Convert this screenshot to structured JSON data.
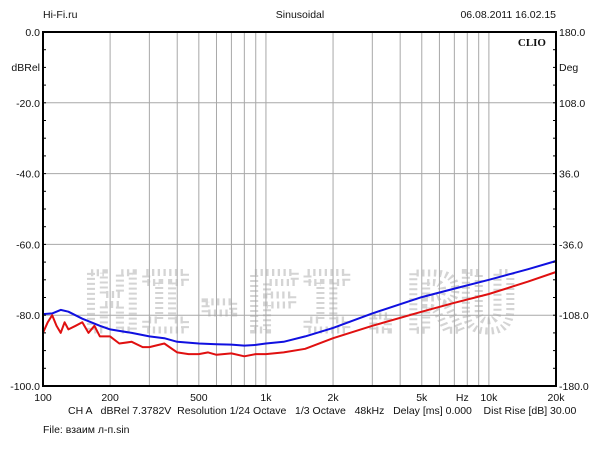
{
  "header": {
    "left": "Hi-Fi.ru",
    "center": "Sinusoidal",
    "right": "06.08.2011 16.02.15"
  },
  "brand": "CLIO",
  "watermark": "HI-FI.RU",
  "footer": {
    "info": "CH A   dBRel 7.3782V  Resolution 1/24 Octave   1/3 Octave   48kHz   Delay [ms] 0.000    Dist Rise [dB] 30.00",
    "file": "File: взаим л-п.sin"
  },
  "chart_data": {
    "type": "line",
    "title": "Sinusoidal",
    "xlabel": "Hz",
    "ylabel": "dBRel",
    "y2label": "Deg",
    "xscale": "log",
    "xlim": [
      100,
      20000
    ],
    "ylim": [
      -100,
      0
    ],
    "y2lim": [
      -180,
      180
    ],
    "xticks": [
      {
        "v": 100,
        "l": "100"
      },
      {
        "v": 200,
        "l": "200"
      },
      {
        "v": 500,
        "l": "500"
      },
      {
        "v": 1000,
        "l": "1k"
      },
      {
        "v": 2000,
        "l": "2k"
      },
      {
        "v": 5000,
        "l": "5k"
      },
      {
        "v": 7600,
        "l": "Hz"
      },
      {
        "v": 10000,
        "l": "10k"
      },
      {
        "v": 20000,
        "l": "20k"
      }
    ],
    "xgrid": [
      200,
      300,
      400,
      500,
      600,
      700,
      800,
      900,
      1000,
      2000,
      3000,
      4000,
      5000,
      6000,
      7000,
      8000,
      9000,
      10000
    ],
    "yticks": [
      {
        "v": 0,
        "l": "0.0",
        "r": "180.0"
      },
      {
        "v": -20,
        "l": "-20.0",
        "r": "108.0"
      },
      {
        "v": -40,
        "l": "-40.0",
        "r": "36.0"
      },
      {
        "v": -60,
        "l": "-60.0",
        "r": "-36.0"
      },
      {
        "v": -80,
        "l": "-80.0",
        "r": "-108.0"
      },
      {
        "v": -100,
        "l": "-100.0",
        "r": "-180.0"
      }
    ],
    "grid": true,
    "series": [
      {
        "name": "blue",
        "color": "#1010e0",
        "x": [
          100,
          110,
          120,
          130,
          150,
          180,
          200,
          250,
          300,
          350,
          400,
          500,
          600,
          700,
          800,
          900,
          1000,
          1200,
          1500,
          2000,
          3000,
          5000,
          7000,
          10000,
          15000,
          20000
        ],
        "y": [
          -79.7,
          -79.5,
          -78.5,
          -79,
          -81,
          -83,
          -84,
          -85,
          -86,
          -86.5,
          -87.5,
          -88,
          -88.2,
          -88.3,
          -88.6,
          -88.4,
          -88,
          -87.5,
          -86,
          -83.6,
          -79.5,
          -74.9,
          -72.5,
          -70,
          -67,
          -64.7
        ]
      },
      {
        "name": "red",
        "color": "#e01010",
        "x": [
          100,
          105,
          110,
          115,
          120,
          125,
          130,
          140,
          150,
          160,
          170,
          180,
          200,
          220,
          250,
          280,
          300,
          350,
          400,
          450,
          500,
          550,
          600,
          700,
          800,
          900,
          1000,
          1200,
          1500,
          2000,
          3000,
          5000,
          7000,
          10000,
          15000,
          20000
        ],
        "y": [
          -85,
          -82,
          -80,
          -83,
          -85,
          -82,
          -84,
          -83,
          -82,
          -85,
          -83,
          -86,
          -86,
          -88,
          -87.5,
          -89,
          -89,
          -88,
          -90.5,
          -91,
          -91,
          -90.5,
          -91.2,
          -90.8,
          -91.6,
          -91,
          -91,
          -90.5,
          -89.5,
          -86.5,
          -83,
          -79,
          -76.5,
          -74,
          -70.5,
          -67.8
        ]
      }
    ]
  }
}
